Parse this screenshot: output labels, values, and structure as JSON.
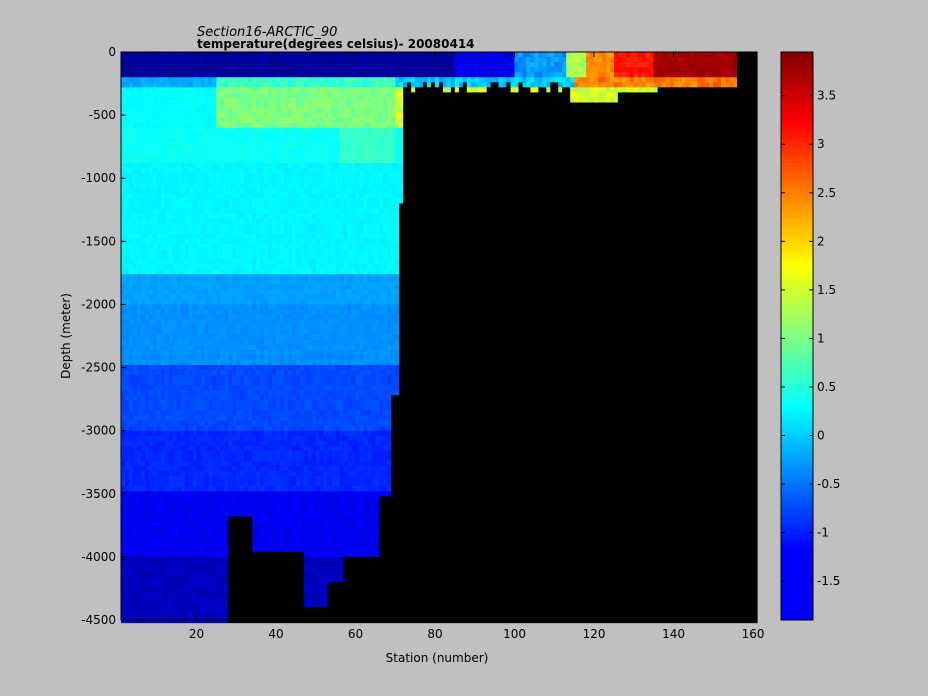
{
  "chart_data": {
    "type": "heatmap",
    "title": "Section16-ARCTIC_90",
    "subtitle": "temperature(degrees  celsius)- 20080414",
    "xlabel": "Station (number)",
    "ylabel": "Depth (meter)",
    "xlim": [
      1,
      161
    ],
    "ylim": [
      -4500,
      0
    ],
    "x_ticks": [
      "20",
      "40",
      "60",
      "80",
      "100",
      "120",
      "140",
      "160"
    ],
    "y_ticks": [
      "0",
      "-500",
      "-1000",
      "-1500",
      "-2000",
      "-2500",
      "-3000",
      "-3500",
      "-4000",
      "-4500"
    ],
    "colorbar": {
      "range": [
        -1.9,
        3.95
      ],
      "ticks": [
        "3.5",
        "3",
        "2.5",
        "2",
        "1.5",
        "1",
        "0.5",
        "0",
        "-0.5",
        "-1",
        "-1.5"
      ],
      "colormap": "jet"
    },
    "missing_color": "#000000",
    "approx_field": {
      "surface_layer_0_to_200m": {
        "stations_1_90": -1.7,
        "stations_100_110": -0.3,
        "stations_113_118": 1.5,
        "stations_118_125": 2.4,
        "stations_125_135": 3.2,
        "stations_135_156": 3.8
      },
      "atlantic_layer_250_to_500m_stations_25_70": 1.0,
      "intermediate_500_to_1750m": 0.3,
      "deep_1750_to_2500m": -0.3,
      "deep_2500_to_3000m": -0.7,
      "deep_3000_to_3500m": -0.9,
      "deep_3500_to_4000m": -1.2,
      "bottom_4000_to_4500m": -1.5
    }
  }
}
